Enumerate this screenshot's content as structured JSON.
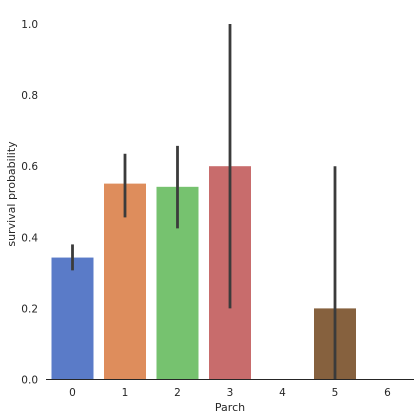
{
  "chart_data": {
    "type": "bar",
    "categories": [
      "0",
      "1",
      "2",
      "3",
      "4",
      "5",
      "6"
    ],
    "series": [
      {
        "values": [
          0.343,
          0.551,
          0.542,
          0.6,
          0,
          0.2,
          0
        ],
        "ci_low": [
          0.307,
          0.456,
          0.425,
          0.2,
          null,
          0.0,
          null
        ],
        "ci_high": [
          0.38,
          0.635,
          0.657,
          1.0,
          null,
          0.6,
          null
        ],
        "colors": [
          "#5a7bc8",
          "#de8d5c",
          "#76c26f",
          "#c86c6c",
          "#8f7bbf",
          "#86613e",
          "#d88ec2"
        ]
      }
    ],
    "xlabel": "Parch",
    "ylabel": "survival probability",
    "ylim": [
      0,
      1.05
    ],
    "yticks": [
      0.0,
      0.2,
      0.4,
      0.6,
      0.8,
      1.0
    ],
    "ytick_labels": [
      "0.0",
      "0.2",
      "0.4",
      "0.6",
      "0.8",
      "1.0"
    ],
    "grid": false,
    "errorbar_color": "#3b3b3b"
  }
}
